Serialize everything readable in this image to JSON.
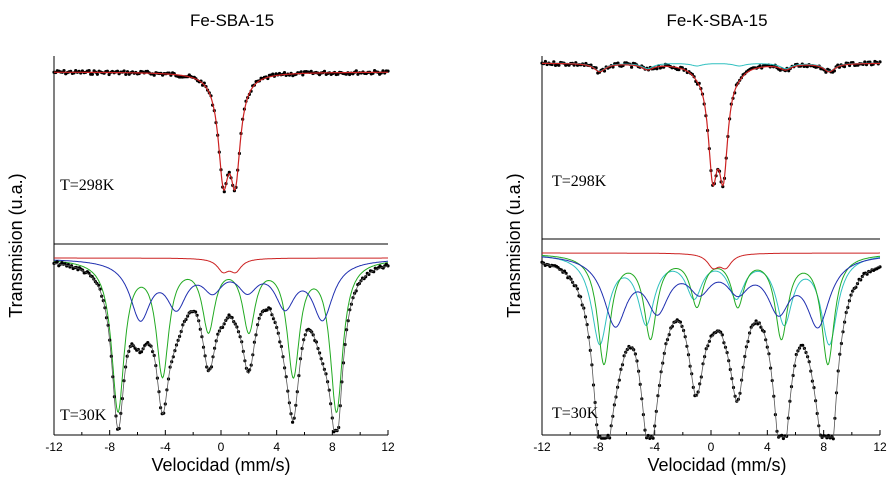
{
  "chart_data": [
    {
      "type": "line",
      "title": "Fe-SBA-15",
      "xlabel": "Velocidad (mm/s)",
      "ylabel": "Transmision (u.a.)",
      "xlim": [
        -12,
        12
      ],
      "xticks": [
        "-12",
        "-8",
        "-4",
        "0",
        "4",
        "8",
        "12"
      ],
      "annotations": [
        "T=298K",
        "T=30K"
      ],
      "spectra": {
        "rt": {
          "doublet": {
            "center": 0.6,
            "split": 0.85,
            "width": 0.45,
            "depth": 1.0
          }
        },
        "lt": {
          "sextet_green": {
            "lines": [
              -7.4,
              -4.2,
              -0.9,
              2.0,
              5.2,
              8.3
            ],
            "depth": 1.0,
            "width": 0.55
          },
          "sextet_blue": {
            "lines": [
              -5.8,
              -3.2,
              -0.6,
              1.9,
              4.6,
              7.3
            ],
            "depth": 0.38,
            "width": 0.9
          },
          "doublet_red": {
            "center": 0.6,
            "split": 0.9,
            "depth": 0.08,
            "width": 0.5
          }
        }
      },
      "colors": {
        "data": "#000000",
        "fit_rt": "#cc2222",
        "green": "#22aa22",
        "blue": "#1f2fb0",
        "red": "#cc2222"
      }
    },
    {
      "type": "line",
      "title": "Fe-K-SBA-15",
      "xlabel": "Velocidad (mm/s)",
      "ylabel": "Transmision (u.a.)",
      "xlim": [
        -12,
        12
      ],
      "xticks": [
        "-12",
        "-8",
        "-4",
        "0",
        "4",
        "8",
        "12"
      ],
      "annotations": [
        "T=298K",
        "T=30K"
      ],
      "spectra": {
        "rt": {
          "doublet": {
            "center": 0.5,
            "split": 0.75,
            "width": 0.4,
            "depth": 1.0
          },
          "sextet_cyan": {
            "lines": [
              -7.9,
              -4.5,
              -1.0,
              2.0,
              5.3,
              8.4
            ],
            "depth": 0.06,
            "width": 0.5
          }
        },
        "lt": {
          "sextet_cyan": {
            "lines": [
              -7.9,
              -4.6,
              -1.2,
              1.8,
              5.2,
              8.4
            ],
            "depth": 0.55,
            "width": 0.7
          },
          "sextet_green": {
            "lines": [
              -7.6,
              -4.3,
              -1.0,
              1.9,
              5.0,
              8.3
            ],
            "depth": 0.68,
            "width": 0.55
          },
          "sextet_blue": {
            "lines": [
              -6.8,
              -3.8,
              -0.8,
              1.9,
              4.8,
              7.6
            ],
            "depth": 0.42,
            "width": 1.0
          },
          "doublet_red": {
            "center": 0.6,
            "split": 0.9,
            "depth": 0.08,
            "width": 0.5
          }
        }
      },
      "colors": {
        "data": "#000000",
        "fit_rt": "#cc2222",
        "green": "#22aa22",
        "blue": "#1f2fb0",
        "red": "#cc2222",
        "cyan": "#30c0c0"
      }
    }
  ]
}
